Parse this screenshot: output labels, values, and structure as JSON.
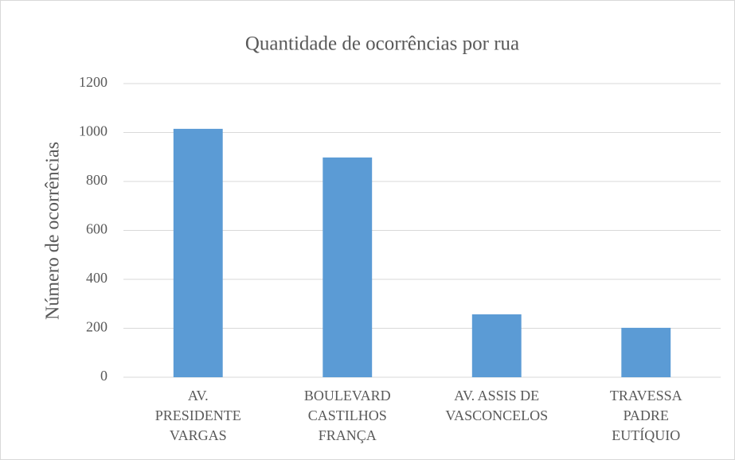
{
  "chart_data": {
    "type": "bar",
    "title": "Quantidade de ocorrências por rua",
    "y_label": "Número de ocorrências",
    "categories": [
      "AV.\nPRESIDENTE\nVARGAS",
      "BOULEVARD\nCASTILHOS\nFRANÇA",
      "AV. ASSIS DE\nVASCONCELOS",
      "TRAVESSA\nPADRE\nEUTÍQUIO"
    ],
    "values": [
      1015,
      898,
      257,
      202
    ],
    "color": "#5b9bd5",
    "ylim": [
      0,
      1200
    ],
    "yticks": [
      0,
      200,
      400,
      600,
      800,
      1000,
      1200
    ],
    "grid": true
  }
}
